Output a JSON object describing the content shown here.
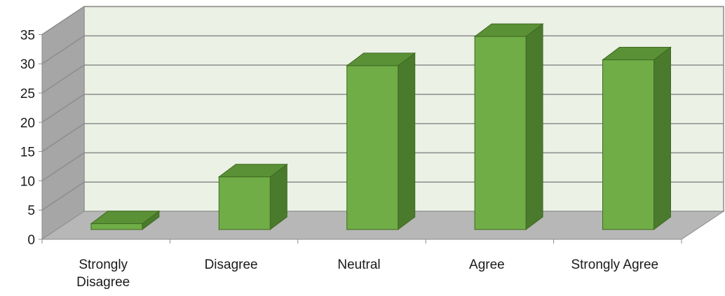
{
  "chart_data": {
    "type": "bar",
    "title": "",
    "xlabel": "",
    "ylabel": "",
    "categories": [
      "Strongly Disagree",
      "Disagree",
      "Neutral",
      "Agree",
      "Strongly Agree"
    ],
    "category_lines": [
      [
        "Strongly",
        "Disagree"
      ],
      [
        "Disagree"
      ],
      [
        "Neutral"
      ],
      [
        "Agree"
      ],
      [
        "Strongly Agree"
      ]
    ],
    "values": [
      1,
      9,
      28,
      33,
      29
    ],
    "ylim": [
      0,
      35
    ],
    "yticks": [
      "0",
      "5",
      "10",
      "15",
      "20",
      "25",
      "30",
      "35"
    ],
    "grid": true,
    "legend": "none",
    "style": "3d-column"
  },
  "colors": {
    "bar_front": "#70ad47",
    "bar_side": "#4a7a2c",
    "bar_top": "#5a9136",
    "bar_edge": "#3f6a22",
    "back_wall": "#ebf1e5",
    "side_wall": "#a6a6a6",
    "floor": "#b7b7b7",
    "gridline": "#8c8c8c",
    "axis": "#8c8c8c"
  }
}
